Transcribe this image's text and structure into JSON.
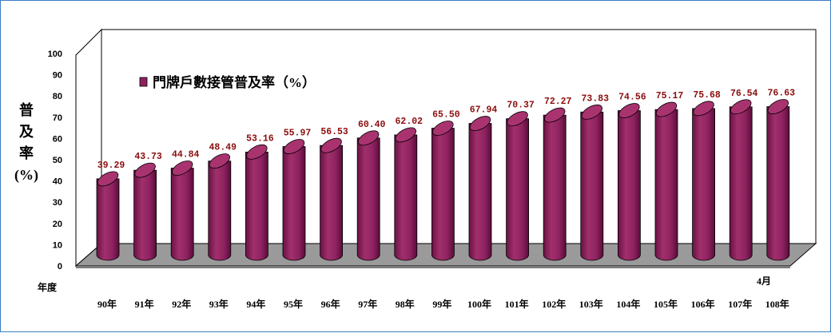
{
  "chart_data": {
    "type": "bar",
    "style": "3d-cylinder",
    "categories": [
      "90年",
      "91年",
      "92年",
      "93年",
      "94年",
      "95年",
      "96年",
      "97年",
      "98年",
      "99年",
      "100年",
      "101年",
      "102年",
      "103年",
      "104年",
      "105年",
      "106年",
      "107年",
      "108年"
    ],
    "series": [
      {
        "name": "門牌戶數接管普及率（%）",
        "color": "#8e2260",
        "values": [
          39.29,
          43.73,
          44.84,
          48.49,
          53.16,
          55.97,
          56.53,
          60.4,
          62.02,
          65.5,
          67.94,
          70.37,
          72.27,
          73.83,
          74.56,
          75.17,
          75.68,
          76.54,
          76.63
        ]
      }
    ],
    "data_labels": [
      "39.29",
      "43.73",
      "44.84",
      "48.49",
      "53.16",
      "55.97",
      "56.53",
      "60.40",
      "62.02",
      "65.50",
      "67.94",
      "70.37",
      "72.27",
      "73.83",
      "74.56",
      "75.17",
      "75.68",
      "76.54",
      "76.63"
    ],
    "ylim": [
      0,
      100
    ],
    "y_ticks": [
      0,
      10,
      20,
      30,
      40,
      50,
      60,
      70,
      80,
      90,
      100
    ],
    "ylabel": "普及率(%)",
    "xlabel": "年度",
    "last_category_note": "4月",
    "legend_position": "top-left",
    "grid": false,
    "colors": {
      "bar": "#8e2260",
      "bar_top": "#a8336f",
      "floor": "#9a9a9a",
      "data_label": "#8b0d0d",
      "border": "#3a7fc0"
    }
  }
}
